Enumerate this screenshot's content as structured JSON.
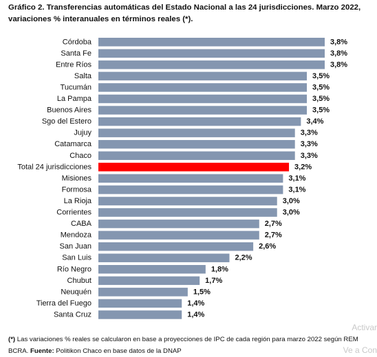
{
  "chart_data": {
    "type": "bar",
    "orientation": "horizontal",
    "title": "Gráfico 2. Transferencias automáticas del Estado Nacional a las 24 jurisdicciones. Marzo 2022, variaciones % interanuales en términos reales (*).",
    "categories": [
      "Córdoba",
      "Santa Fe",
      "Entre Ríos",
      "Salta",
      "Tucumán",
      "La Pampa",
      "Buenos Aires",
      "Sgo del Estero",
      "Jujuy",
      "Catamarca",
      "Chaco",
      "Total 24 jurisdicciones",
      "Misiones",
      "Formosa",
      "La Rioja",
      "Corrientes",
      "CABA",
      "Mendoza",
      "San Juan",
      "San Luis",
      "Río Negro",
      "Chubut",
      "Neuquén",
      "Tierra del Fuego",
      "Santa Cruz"
    ],
    "values": [
      3.8,
      3.8,
      3.8,
      3.5,
      3.5,
      3.5,
      3.5,
      3.4,
      3.3,
      3.3,
      3.3,
      3.2,
      3.1,
      3.1,
      3.0,
      3.0,
      2.7,
      2.7,
      2.6,
      2.2,
      1.8,
      1.7,
      1.5,
      1.4,
      1.4
    ],
    "labels": [
      "3,8%",
      "3,8%",
      "3,8%",
      "3,5%",
      "3,5%",
      "3,5%",
      "3,5%",
      "3,4%",
      "3,3%",
      "3,3%",
      "3,3%",
      "3,2%",
      "3,1%",
      "3,1%",
      "3,0%",
      "3,0%",
      "2,7%",
      "2,7%",
      "2,6%",
      "2,2%",
      "1,8%",
      "1,7%",
      "1,5%",
      "1,4%",
      "1,4%"
    ],
    "highlight_category": "Total 24 jurisdicciones",
    "colors": {
      "bar": "#8496b0",
      "highlight": "#ff0000"
    },
    "xlim": [
      0,
      3.8
    ],
    "grid": false,
    "legend": "none"
  },
  "footnote": {
    "marker": "(*)",
    "line1": " Las variaciones % reales se calcularon en base a proyecciones de IPC de cada región para marzo 2022 según REM",
    "line2_start": "BCRA. ",
    "source_label": "Fuente:",
    "source_text": " Politikon Chaco en base datos de la DNAP"
  },
  "watermark": {
    "line1": "Activar",
    "line2": "Ve a Con"
  }
}
